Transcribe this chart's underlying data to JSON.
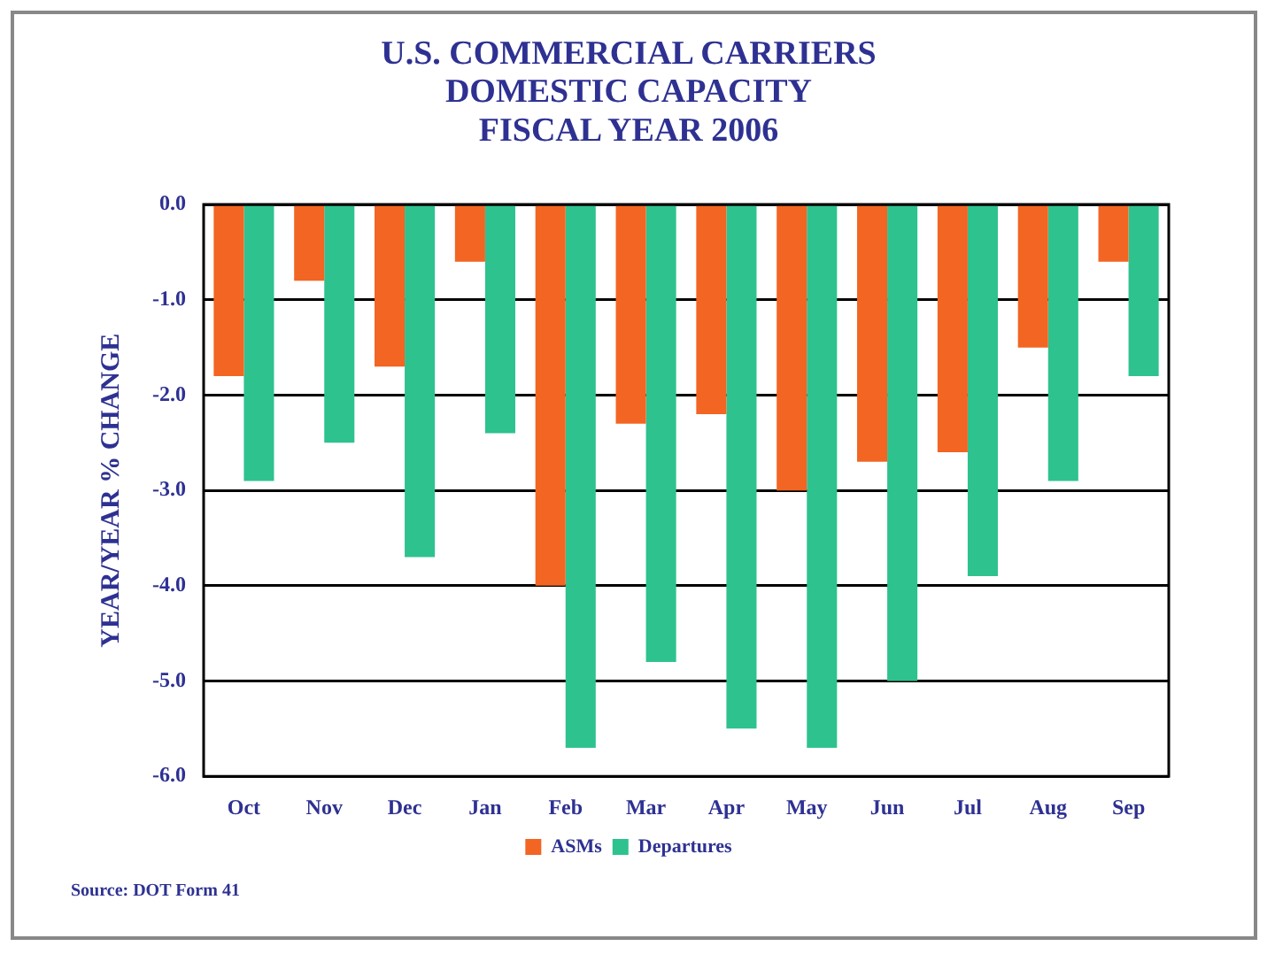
{
  "chart_data": {
    "type": "bar",
    "title": "U.S. COMMERCIAL CARRIERS\nDOMESTIC CAPACITY\nFISCAL YEAR 2006",
    "ylabel": "YEAR/YEAR % CHANGE",
    "categories": [
      "Oct",
      "Nov",
      "Dec",
      "Jan",
      "Feb",
      "Mar",
      "Apr",
      "May",
      "Jun",
      "Jul",
      "Aug",
      "Sep"
    ],
    "series": [
      {
        "name": "ASMs",
        "color": "#f26522",
        "values": [
          -1.8,
          -0.8,
          -1.7,
          -0.6,
          -4.0,
          -2.3,
          -2.2,
          -3.0,
          -2.7,
          -2.6,
          -1.5,
          -0.6
        ]
      },
      {
        "name": "Departures",
        "color": "#2ec28e",
        "values": [
          -2.9,
          -2.5,
          -3.7,
          -2.4,
          -5.7,
          -4.8,
          -5.5,
          -5.7,
          -5.0,
          -3.9,
          -2.9,
          -1.8
        ]
      }
    ],
    "ylim": [
      -6,
      0
    ],
    "yticks": [
      {
        "value": 0,
        "label": "0.0"
      },
      {
        "value": -1,
        "label": "-1.0"
      },
      {
        "value": -2,
        "label": "-2.0"
      },
      {
        "value": -3,
        "label": "-3.0"
      },
      {
        "value": -4,
        "label": "-4.0"
      },
      {
        "value": -5,
        "label": "-5.0"
      },
      {
        "value": -6,
        "label": "-6.0"
      }
    ],
    "grid": "y",
    "legend": "bottom",
    "annotations": [
      "Source: DOT Form 41"
    ]
  }
}
